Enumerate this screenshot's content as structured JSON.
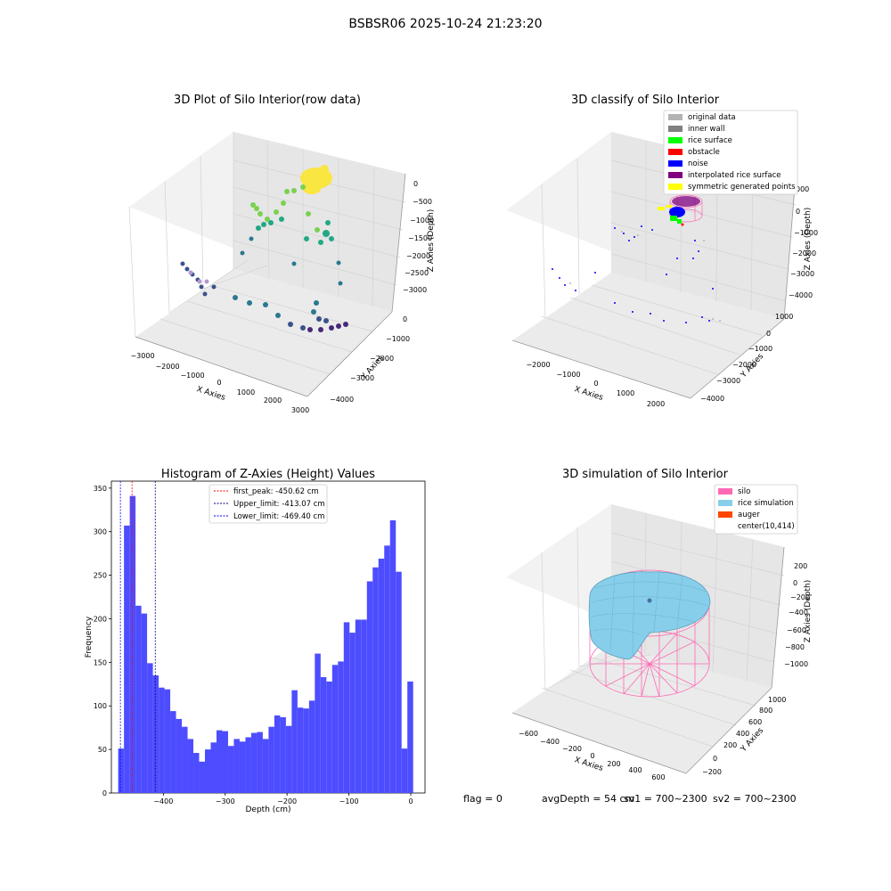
{
  "figure_title": "BSBSR06 2025-10-24 21:23:20",
  "status_line": {
    "flag": "flag = 0",
    "avg_depth": "avgDepth = 54 cm",
    "sv1": "sv1 = 700~2300",
    "sv2": "sv2 = 700~2300"
  },
  "chart_data": [
    {
      "type": "scatter",
      "projection": "3d",
      "title": "3D Plot of Silo Interior(row data)",
      "xlabel": "X Axies",
      "ylabel": "Y Axies",
      "zlabel": "Z Axies (Depth)",
      "x_ticks": [
        "−3000",
        "−2000",
        "−1000",
        "0",
        "1000",
        "2000",
        "3000"
      ],
      "y_ticks": [
        "−4000",
        "−3000",
        "−2000",
        "−1000",
        "0"
      ],
      "z_ticks": [
        "−3000",
        "−2500",
        "−2000",
        "−1500",
        "−1000",
        "−500",
        "0"
      ],
      "colormap": "viridis",
      "grid": true
    },
    {
      "type": "scatter",
      "projection": "3d",
      "title": "3D classify of Silo Interior",
      "xlabel": "X Axies",
      "ylabel": "Y Axies",
      "zlabel": "Z Axies (Depth)",
      "x_ticks": [
        "−2000",
        "−1000",
        "0",
        "1000",
        "2000"
      ],
      "y_ticks": [
        "−4000",
        "−3000",
        "−2000",
        "−1000",
        "0",
        "1000"
      ],
      "z_ticks": [
        "−4000",
        "−3000",
        "−2000",
        "−1000",
        "0",
        "000"
      ],
      "legend_position": "top-right",
      "legend": [
        {
          "label": "original data",
          "color": "#b3b3b3"
        },
        {
          "label": "inner wall",
          "color": "#808080"
        },
        {
          "label": "rice surface",
          "color": "#00ff00"
        },
        {
          "label": "obstacle",
          "color": "#ff0000"
        },
        {
          "label": "noise",
          "color": "#0000ff"
        },
        {
          "label": "interpolated rice surface",
          "color": "#800080"
        },
        {
          "label": "symmetric generated points",
          "color": "#ffff00"
        }
      ],
      "grid": true
    },
    {
      "type": "bar",
      "title": "Histogram of Z-Axies (Height) Values",
      "xlabel": "Depth (cm)",
      "ylabel": "Frequency",
      "xlim": [
        -484,
        23
      ],
      "ylim": [
        0,
        358
      ],
      "x_ticks": [
        "−400",
        "−300",
        "−200",
        "−100",
        "0"
      ],
      "x_tick_values": [
        -400,
        -300,
        -200,
        -100,
        0
      ],
      "y_ticks": [
        "0",
        "50",
        "100",
        "150",
        "200",
        "250",
        "300",
        "350"
      ],
      "y_tick_values": [
        0,
        50,
        100,
        150,
        200,
        250,
        300,
        350
      ],
      "bin_start": -473,
      "bin_width": 9.35,
      "values": [
        51,
        307,
        341,
        215,
        206,
        149,
        135,
        121,
        119,
        94,
        85,
        76,
        62,
        46,
        36,
        50,
        58,
        72,
        71,
        54,
        62,
        59,
        64,
        69,
        70,
        62,
        76,
        89,
        87,
        77,
        118,
        98,
        97,
        106,
        160,
        133,
        128,
        147,
        151,
        196,
        184,
        199,
        199,
        243,
        259,
        269,
        284,
        313,
        254,
        51,
        128
      ],
      "bar_color": "#4d4dff",
      "reference_lines": [
        {
          "label": "first_peak: -450.62 cm",
          "x": -450.62,
          "color": "#ff0000"
        },
        {
          "label": "Upper_limit: -413.07 cm",
          "x": -413.07,
          "color": "#000080"
        },
        {
          "label": "Lower_limit: -469.40 cm",
          "x": -469.4,
          "color": "#0000ff"
        }
      ],
      "legend_position": "top-center",
      "grid": false
    },
    {
      "type": "area",
      "projection": "3d",
      "title": "3D simulation of Silo Interior",
      "xlabel": "X Axies",
      "ylabel": "Y Axies",
      "zlabel": "Z Axies (Depth)",
      "x_ticks": [
        "−600",
        "−400",
        "−200",
        "0",
        "200",
        "400",
        "600"
      ],
      "y_ticks": [
        "−200",
        "0",
        "200",
        "400",
        "600",
        "800",
        "1000"
      ],
      "z_ticks": [
        "−1000",
        "−800",
        "−600",
        "−400",
        "−200",
        "0",
        "200"
      ],
      "legend_position": "top-right",
      "legend": [
        {
          "label": "silo",
          "color": "#ff69b4"
        },
        {
          "label": "rice simulation",
          "color": "#87ceeb"
        },
        {
          "label": "auger",
          "color": "#ff4500"
        },
        {
          "label": "center(10,414)",
          "color": ""
        }
      ],
      "grid": true
    }
  ]
}
